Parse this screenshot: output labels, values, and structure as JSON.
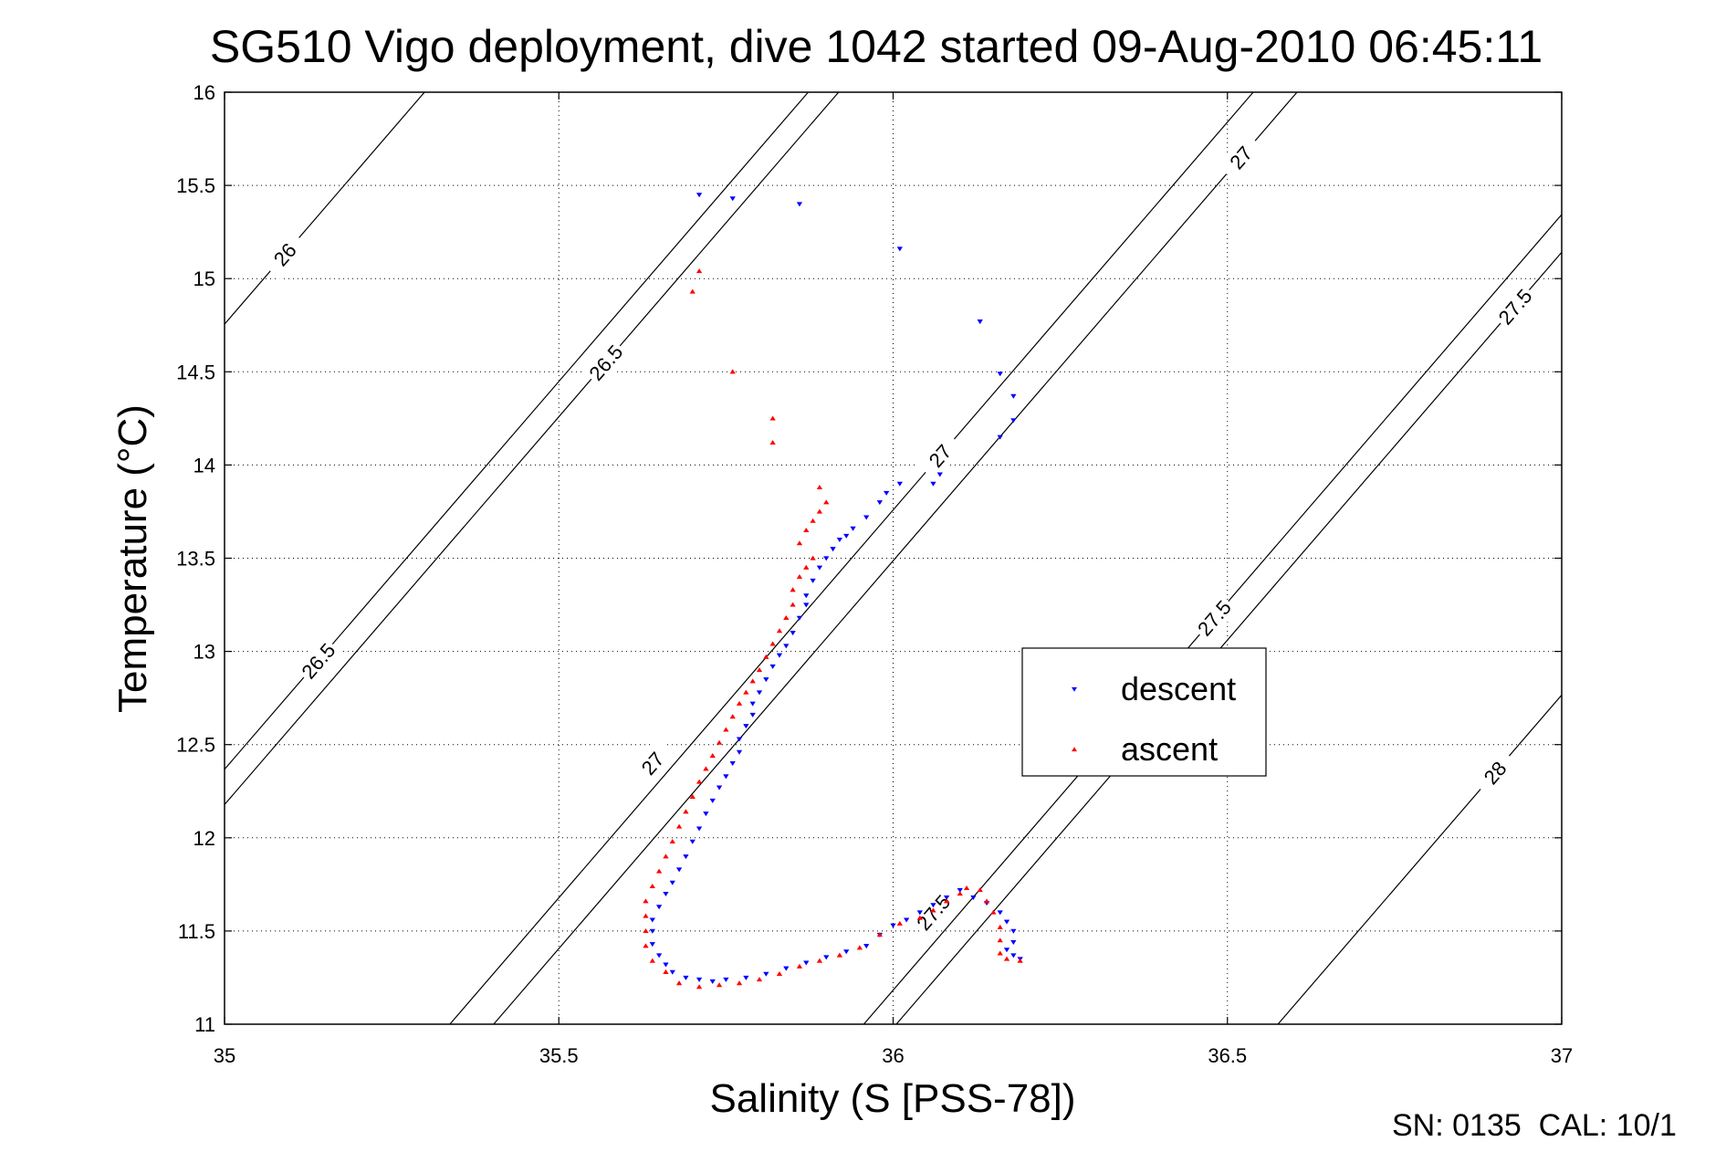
{
  "chart_data": {
    "type": "scatter",
    "title": "SG510 Vigo deployment, dive 1042 started 09-Aug-2010 06:45:11",
    "xlabel": "Salinity (S [PSS-78])",
    "ylabel": "Temperature (°C)",
    "xlim": [
      35,
      37
    ],
    "ylim": [
      11,
      16
    ],
    "x_ticks": [
      "35",
      "35.5",
      "36",
      "36.5",
      "37"
    ],
    "y_ticks": [
      "11",
      "11.5",
      "12",
      "12.5",
      "13",
      "13.5",
      "14",
      "14.5",
      "15",
      "15.5",
      "16"
    ],
    "grid": true,
    "legend_position": "center-right",
    "footer": "SN: 0135  CAL: 10/1",
    "density_contours": {
      "color": "#000000",
      "lines": [
        {
          "level": "26",
          "labels": [
            {
              "text": "26",
              "x": 35.09,
              "y": 15.13
            }
          ]
        },
        {
          "level": "26.5",
          "labels": [
            {
              "text": "26.5",
              "x": 35.57,
              "y": 14.55
            },
            {
              "text": "26.5",
              "x": 35.14,
              "y": 12.95
            }
          ]
        },
        {
          "level": "27",
          "labels": [
            {
              "text": "27",
              "x": 36.52,
              "y": 15.65
            },
            {
              "text": "27",
              "x": 36.07,
              "y": 14.05
            },
            {
              "text": "27",
              "x": 35.64,
              "y": 12.4
            }
          ]
        },
        {
          "level": "27.5",
          "labels": [
            {
              "text": "27.5",
              "x": 36.93,
              "y": 14.85
            },
            {
              "text": "27.5",
              "x": 36.48,
              "y": 13.18
            },
            {
              "text": "27.5",
              "x": 36.06,
              "y": 11.6
            }
          ]
        },
        {
          "level": "28",
          "labels": [
            {
              "text": "28",
              "x": 36.9,
              "y": 12.35
            }
          ]
        }
      ]
    },
    "series": [
      {
        "name": "descent",
        "color": "#0000ff",
        "marker": "triangle-down",
        "points": [
          [
            35.71,
            15.45
          ],
          [
            35.76,
            15.43
          ],
          [
            35.86,
            15.4
          ],
          [
            36.01,
            15.16
          ],
          [
            36.13,
            14.77
          ],
          [
            36.16,
            14.49
          ],
          [
            36.18,
            14.37
          ],
          [
            36.18,
            14.24
          ],
          [
            36.16,
            14.15
          ],
          [
            36.07,
            13.95
          ],
          [
            36.06,
            13.9
          ],
          [
            36.01,
            13.9
          ],
          [
            35.99,
            13.85
          ],
          [
            35.98,
            13.8
          ],
          [
            35.96,
            13.72
          ],
          [
            35.94,
            13.66
          ],
          [
            35.93,
            13.62
          ],
          [
            35.92,
            13.6
          ],
          [
            35.91,
            13.55
          ],
          [
            35.9,
            13.5
          ],
          [
            35.89,
            13.45
          ],
          [
            35.88,
            13.38
          ],
          [
            35.87,
            13.3
          ],
          [
            35.87,
            13.25
          ],
          [
            35.86,
            13.18
          ],
          [
            35.85,
            13.1
          ],
          [
            35.84,
            13.03
          ],
          [
            35.83,
            12.98
          ],
          [
            35.82,
            12.92
          ],
          [
            35.81,
            12.85
          ],
          [
            35.8,
            12.78
          ],
          [
            35.79,
            12.72
          ],
          [
            35.79,
            12.66
          ],
          [
            35.78,
            12.6
          ],
          [
            35.77,
            12.53
          ],
          [
            35.77,
            12.46
          ],
          [
            35.76,
            12.4
          ],
          [
            35.75,
            12.33
          ],
          [
            35.74,
            12.27
          ],
          [
            35.73,
            12.2
          ],
          [
            35.72,
            12.13
          ],
          [
            35.71,
            12.05
          ],
          [
            35.7,
            11.98
          ],
          [
            35.69,
            11.9
          ],
          [
            35.68,
            11.83
          ],
          [
            35.67,
            11.76
          ],
          [
            35.66,
            11.7
          ],
          [
            35.65,
            11.63
          ],
          [
            35.64,
            11.56
          ],
          [
            35.64,
            11.5
          ],
          [
            35.64,
            11.43
          ],
          [
            35.65,
            11.37
          ],
          [
            35.66,
            11.32
          ],
          [
            35.67,
            11.28
          ],
          [
            35.69,
            11.25
          ],
          [
            35.71,
            11.24
          ],
          [
            35.73,
            11.23
          ],
          [
            35.75,
            11.24
          ],
          [
            35.78,
            11.25
          ],
          [
            35.81,
            11.27
          ],
          [
            35.84,
            11.3
          ],
          [
            35.87,
            11.33
          ],
          [
            35.9,
            11.36
          ],
          [
            35.93,
            11.39
          ],
          [
            35.96,
            11.42
          ],
          [
            35.98,
            11.48
          ],
          [
            36.0,
            11.53
          ],
          [
            36.02,
            11.56
          ],
          [
            36.04,
            11.6
          ],
          [
            36.06,
            11.64
          ],
          [
            36.08,
            11.68
          ],
          [
            36.1,
            11.72
          ],
          [
            36.12,
            11.68
          ],
          [
            36.14,
            11.65
          ],
          [
            36.16,
            11.6
          ],
          [
            36.17,
            11.55
          ],
          [
            36.18,
            11.5
          ],
          [
            36.18,
            11.44
          ],
          [
            36.17,
            11.4
          ],
          [
            36.18,
            11.37
          ],
          [
            36.19,
            11.35
          ]
        ]
      },
      {
        "name": "ascent",
        "color": "#ff0000",
        "marker": "triangle-up",
        "points": [
          [
            35.71,
            15.04
          ],
          [
            35.7,
            14.93
          ],
          [
            35.76,
            14.5
          ],
          [
            35.82,
            14.25
          ],
          [
            35.82,
            14.12
          ],
          [
            35.89,
            13.88
          ],
          [
            35.9,
            13.8
          ],
          [
            35.89,
            13.75
          ],
          [
            35.88,
            13.7
          ],
          [
            35.87,
            13.65
          ],
          [
            35.86,
            13.58
          ],
          [
            35.88,
            13.5
          ],
          [
            35.87,
            13.45
          ],
          [
            35.86,
            13.4
          ],
          [
            35.85,
            13.33
          ],
          [
            35.85,
            13.25
          ],
          [
            35.84,
            13.18
          ],
          [
            35.83,
            13.11
          ],
          [
            35.82,
            13.04
          ],
          [
            35.81,
            12.97
          ],
          [
            35.8,
            12.9
          ],
          [
            35.79,
            12.84
          ],
          [
            35.78,
            12.78
          ],
          [
            35.77,
            12.72
          ],
          [
            35.76,
            12.65
          ],
          [
            35.75,
            12.58
          ],
          [
            35.74,
            12.51
          ],
          [
            35.73,
            12.44
          ],
          [
            35.72,
            12.37
          ],
          [
            35.71,
            12.3
          ],
          [
            35.7,
            12.22
          ],
          [
            35.69,
            12.14
          ],
          [
            35.68,
            12.06
          ],
          [
            35.67,
            11.98
          ],
          [
            35.66,
            11.9
          ],
          [
            35.65,
            11.82
          ],
          [
            35.64,
            11.74
          ],
          [
            35.63,
            11.66
          ],
          [
            35.63,
            11.58
          ],
          [
            35.63,
            11.5
          ],
          [
            35.63,
            11.42
          ],
          [
            35.64,
            11.34
          ],
          [
            35.66,
            11.28
          ],
          [
            35.68,
            11.22
          ],
          [
            35.71,
            11.2
          ],
          [
            35.74,
            11.21
          ],
          [
            35.77,
            11.22
          ],
          [
            35.8,
            11.24
          ],
          [
            35.83,
            11.27
          ],
          [
            35.86,
            11.31
          ],
          [
            35.89,
            11.34
          ],
          [
            35.92,
            11.37
          ],
          [
            35.95,
            11.41
          ],
          [
            35.98,
            11.48
          ],
          [
            36.01,
            11.54
          ],
          [
            36.04,
            11.57
          ],
          [
            36.06,
            11.61
          ],
          [
            36.08,
            11.66
          ],
          [
            36.1,
            11.7
          ],
          [
            36.11,
            11.73
          ],
          [
            36.13,
            11.72
          ],
          [
            36.14,
            11.66
          ],
          [
            36.15,
            11.6
          ],
          [
            36.16,
            11.52
          ],
          [
            36.16,
            11.45
          ],
          [
            36.16,
            11.38
          ],
          [
            36.17,
            11.35
          ],
          [
            36.19,
            11.34
          ]
        ]
      }
    ]
  }
}
